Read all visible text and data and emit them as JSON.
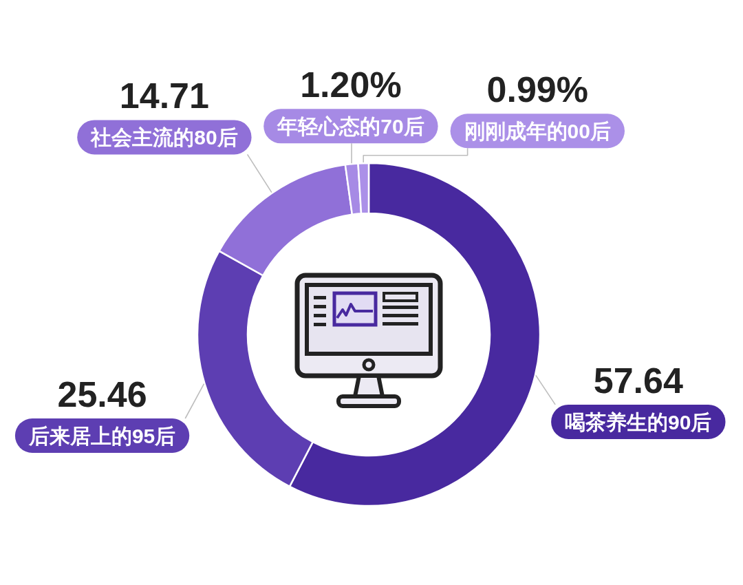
{
  "chart_data": {
    "type": "donut",
    "categories": [
      "喝茶养生的90后",
      "后来居上的95后",
      "社会主流的80后",
      "年轻心态的70后",
      "刚刚成年的00后"
    ],
    "values": [
      57.64,
      25.46,
      14.71,
      1.2,
      0.99
    ],
    "colors": [
      "#48299f",
      "#5d3eb2",
      "#9070d8",
      "#a68ae5",
      "#ab90e8"
    ],
    "value_labels": [
      "57.64",
      "25.46",
      "14.71",
      "1.20%",
      "0.99%"
    ]
  }
}
